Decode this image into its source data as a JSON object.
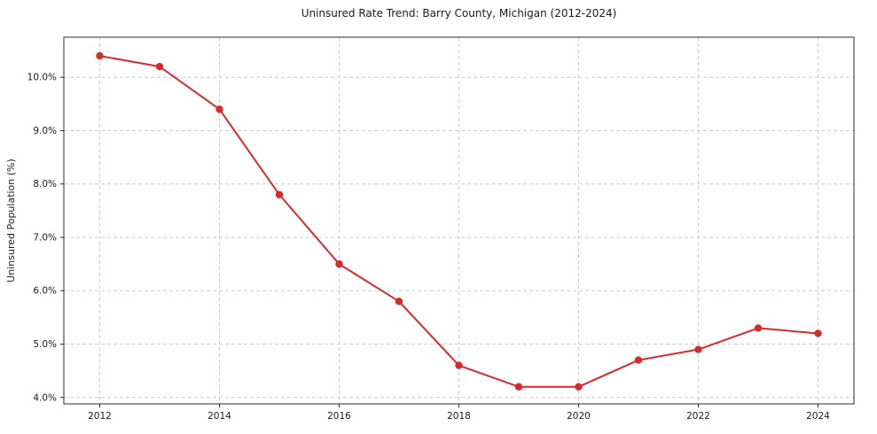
{
  "chart_data": {
    "type": "line",
    "title": "Uninsured Rate Trend: Barry County, Michigan (2012-2024)",
    "xlabel": "",
    "ylabel": "Uninsured Population (%)",
    "x": [
      2012,
      2013,
      2014,
      2015,
      2016,
      2017,
      2018,
      2019,
      2020,
      2021,
      2022,
      2023,
      2024
    ],
    "values": [
      10.4,
      10.2,
      9.4,
      7.8,
      6.5,
      5.8,
      4.6,
      4.2,
      4.2,
      4.7,
      4.9,
      5.3,
      5.2
    ],
    "series_name": "Uninsured rate",
    "xlim": [
      2011.4,
      2024.6
    ],
    "ylim": [
      3.88,
      10.75
    ],
    "xticks": [
      2012,
      2014,
      2016,
      2018,
      2020,
      2022,
      2024
    ],
    "xtick_labels": [
      "2012",
      "2014",
      "2016",
      "2018",
      "2020",
      "2022",
      "2024"
    ],
    "yticks": [
      4,
      5,
      6,
      7,
      8,
      9,
      10
    ],
    "ytick_labels": [
      "4.0%",
      "5.0%",
      "6.0%",
      "7.0%",
      "8.0%",
      "9.0%",
      "10.0%"
    ],
    "grid": true,
    "legend": "none",
    "line_color": "#d62b2b",
    "marker_color": "#d62b2b",
    "grid_color": "#cccccc",
    "axis_color": "#2b2b2b",
    "background": "#ffffff"
  }
}
